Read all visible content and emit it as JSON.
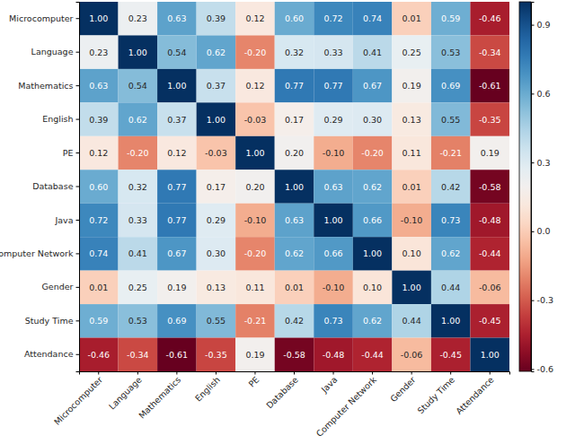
{
  "chart_data": {
    "type": "heatmap",
    "x": [
      "Microcomputer",
      "Language",
      "Mathematics",
      "English",
      "PE",
      "Database",
      "Java",
      "Computer Network",
      "Gender",
      "Study Time",
      "Attendance"
    ],
    "y": [
      "Microcomputer",
      "Language",
      "Mathematics",
      "English",
      "PE",
      "Database",
      "Java",
      "Computer Network",
      "Gender",
      "Study Time",
      "Attendance"
    ],
    "cells": [
      [
        1.0,
        0.23,
        0.63,
        0.39,
        0.12,
        0.6,
        0.72,
        0.74,
        0.01,
        0.59,
        -0.46
      ],
      [
        0.23,
        1.0,
        0.54,
        0.62,
        -0.2,
        0.32,
        0.33,
        0.41,
        0.25,
        0.53,
        -0.34
      ],
      [
        0.63,
        0.54,
        1.0,
        0.37,
        0.12,
        0.77,
        0.77,
        0.67,
        0.19,
        0.69,
        -0.61
      ],
      [
        0.39,
        0.62,
        0.37,
        1.0,
        -0.03,
        0.17,
        0.29,
        0.3,
        0.13,
        0.55,
        -0.35
      ],
      [
        0.12,
        -0.2,
        0.12,
        -0.03,
        1.0,
        0.2,
        -0.1,
        -0.2,
        0.11,
        -0.21,
        0.19
      ],
      [
        0.6,
        0.32,
        0.77,
        0.17,
        0.2,
        1.0,
        0.63,
        0.62,
        0.01,
        0.42,
        -0.58
      ],
      [
        0.72,
        0.33,
        0.77,
        0.29,
        -0.1,
        0.63,
        1.0,
        0.66,
        -0.1,
        0.73,
        -0.48
      ],
      [
        0.74,
        0.41,
        0.67,
        0.3,
        -0.2,
        0.62,
        0.66,
        1.0,
        0.1,
        0.62,
        -0.44
      ],
      [
        0.01,
        0.25,
        0.19,
        0.13,
        0.11,
        0.01,
        -0.1,
        0.1,
        1.0,
        0.44,
        -0.06
      ],
      [
        0.59,
        0.53,
        0.69,
        0.55,
        -0.21,
        0.42,
        0.73,
        0.62,
        0.44,
        1.0,
        -0.45
      ],
      [
        -0.46,
        -0.34,
        -0.61,
        -0.35,
        0.19,
        -0.58,
        -0.48,
        -0.44,
        -0.06,
        -0.45,
        1.0
      ]
    ],
    "value_labels": [
      [
        "1.00",
        "0.23",
        "0.63",
        "0.39",
        "0.12",
        "0.60",
        "0.72",
        "0.74",
        "0.01",
        "0.59",
        "-0.46"
      ],
      [
        "0.23",
        "1.00",
        "0.54",
        "0.62",
        "-0.20",
        "0.32",
        "0.33",
        "0.41",
        "0.25",
        "0.53",
        "-0.34"
      ],
      [
        "0.63",
        "0.54",
        "1.00",
        "0.37",
        "0.12",
        "0.77",
        "0.77",
        "0.67",
        "0.19",
        "0.69",
        "-0.61"
      ],
      [
        "0.39",
        "0.62",
        "0.37",
        "1.00",
        "-0.03",
        "0.17",
        "0.29",
        "0.30",
        "0.13",
        "0.55",
        "-0.35"
      ],
      [
        "0.12",
        "-0.20",
        "0.12",
        "-0.03",
        "1.00",
        "0.20",
        "-0.10",
        "-0.20",
        "0.11",
        "-0.21",
        "0.19"
      ],
      [
        "0.60",
        "0.32",
        "0.77",
        "0.17",
        "0.20",
        "1.00",
        "0.63",
        "0.62",
        "0.01",
        "0.42",
        "-0.58"
      ],
      [
        "0.72",
        "0.33",
        "0.77",
        "0.29",
        "-0.10",
        "0.63",
        "1.00",
        "0.66",
        "-0.10",
        "0.73",
        "-0.48"
      ],
      [
        "0.74",
        "0.41",
        "0.67",
        "0.30",
        "-0.20",
        "0.62",
        "0.66",
        "1.00",
        "0.10",
        "0.62",
        "-0.44"
      ],
      [
        "0.01",
        "0.25",
        "0.19",
        "0.13",
        "0.11",
        "0.01",
        "-0.10",
        "0.10",
        "1.00",
        "0.44",
        "-0.06"
      ],
      [
        "0.59",
        "0.53",
        "0.69",
        "0.55",
        "-0.21",
        "0.42",
        "0.73",
        "0.62",
        "0.44",
        "1.00",
        "-0.45"
      ],
      [
        "-0.46",
        "-0.34",
        "-0.61",
        "-0.35",
        "0.19",
        "-0.58",
        "-0.48",
        "-0.44",
        "-0.06",
        "-0.45",
        "1.00"
      ]
    ],
    "data_labels": true,
    "colorbar": {
      "lim": [
        -0.61,
        1.0
      ],
      "ticks": [
        -0.6,
        -0.3,
        {
          "value": 0,
          "label": "0.0"
        },
        0.3,
        0.6,
        0.9
      ]
    }
  }
}
